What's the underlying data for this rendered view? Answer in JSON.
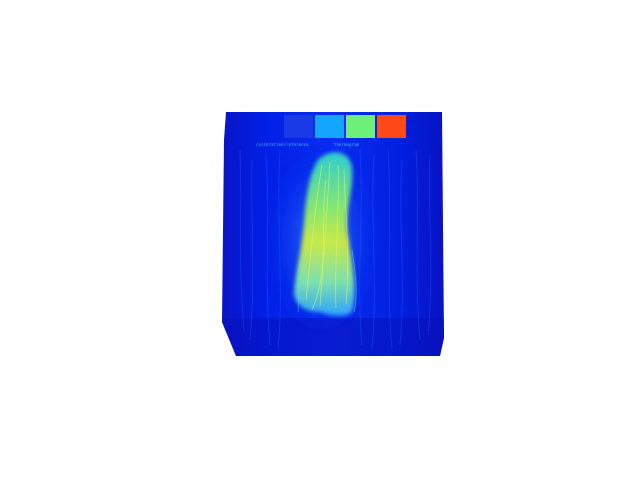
{
  "image": {
    "subject": "false-color thermal heatmap panel with hair strand plume",
    "colormap": [
      "#00007f",
      "#0000ff",
      "#00bfff",
      "#7fff7f",
      "#ffff00",
      "#ff7f00",
      "#ff0000"
    ],
    "swatches": [
      {
        "name": "swatch-blue",
        "color": "#1a3ae6"
      },
      {
        "name": "swatch-cyan",
        "color": "#14a6ff"
      },
      {
        "name": "swatch-green",
        "color": "#6cf07a"
      },
      {
        "name": "swatch-red",
        "color": "#ff4a18"
      }
    ],
    "caption_left": "calibration/reference",
    "caption_right": "thermogram"
  }
}
